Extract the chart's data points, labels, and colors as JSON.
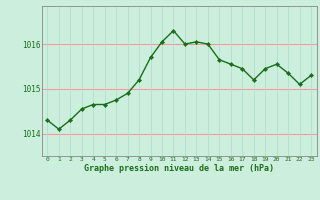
{
  "hours": [
    0,
    1,
    2,
    3,
    4,
    5,
    6,
    7,
    8,
    9,
    10,
    11,
    12,
    13,
    14,
    15,
    16,
    17,
    18,
    19,
    20,
    21,
    22,
    23
  ],
  "pressure": [
    1014.3,
    1014.1,
    1014.3,
    1014.55,
    1014.65,
    1014.65,
    1014.75,
    1014.9,
    1015.2,
    1015.7,
    1016.05,
    1016.3,
    1016.0,
    1016.05,
    1016.0,
    1015.65,
    1015.55,
    1015.45,
    1015.2,
    1015.45,
    1015.55,
    1015.35,
    1015.1,
    1015.3
  ],
  "ylim": [
    1013.5,
    1016.85
  ],
  "yticks": [
    1014,
    1015,
    1016
  ],
  "xticks": [
    0,
    1,
    2,
    3,
    4,
    5,
    6,
    7,
    8,
    9,
    10,
    11,
    12,
    13,
    14,
    15,
    16,
    17,
    18,
    19,
    20,
    21,
    22,
    23
  ],
  "line_color": "#1a6e1a",
  "marker_color": "#1a6e1a",
  "bg_plot": "#cceedd",
  "bg_fig": "#cceedd",
  "grid_h_color": "#ff9999",
  "grid_v_color": "#aaddcc",
  "xlabel": "Graphe pression niveau de la mer (hPa)",
  "xlabel_color": "#1a6e1a",
  "tick_color": "#1a6e1a",
  "spine_color": "#888888"
}
